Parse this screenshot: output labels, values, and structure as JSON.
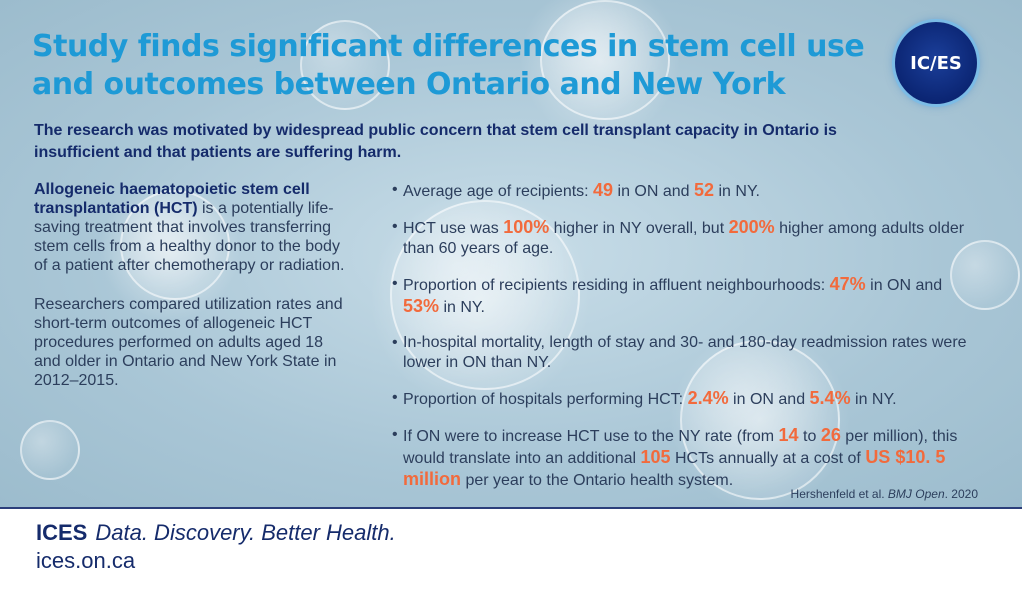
{
  "header": {
    "title": "Study finds significant differences in stem cell use and outcomes between Ontario and New York",
    "logo_text": "IC/ES",
    "subtitle": "The research was motivated by widespread public concern that stem cell transplant capacity in Ontario is insufficient and that patients are suffering harm."
  },
  "left": {
    "p1_term": "Allogeneic haematopoietic stem cell transplantation (HCT)",
    "p1_rest": " is a potentially life-saving treatment that involves transferring stem cells from a healthy donor to the body of a patient after chemotherapy or radiation.",
    "p2": "Researchers compared utilization rates and short-term outcomes of allogeneic HCT procedures performed on adults aged 18 and older in Ontario and New York State in 2012–2015."
  },
  "findings": {
    "f1": {
      "a": "Average age of recipients: ",
      "v1": "49",
      "b": " in ON and ",
      "v2": "52",
      "c": " in NY."
    },
    "f2": {
      "a": "HCT use was ",
      "v1": "100%",
      "b": " higher in  NY overall, but ",
      "v2": "200%",
      "c": " higher among adults older than 60 years of age."
    },
    "f3": {
      "a": "Proportion of recipients residing in affluent neighbourhoods: ",
      "v1": "47%",
      "b": " in ON and ",
      "v2": "53%",
      "c": " in NY."
    },
    "f4": {
      "a": "In-hospital mortality, length of stay and 30- and 180-day readmission rates were lower in ON than NY."
    },
    "f5": {
      "a": "Proportion of hospitals performing HCT: ",
      "v1": "2.4%",
      "b": " in ON and  ",
      "v2": "5.4%",
      "c": " in NY."
    },
    "f6": {
      "a": "If ON were to increase HCT use to the NY rate (from ",
      "v1": "14",
      "b": " to ",
      "v2": "26",
      "c": " per million), this would translate into an additional ",
      "v3": "105",
      "d": " HCTs annually at a cost of ",
      "v4": "US $10. 5 million",
      "e": " per year to the Ontario health system."
    }
  },
  "citation": {
    "authors": "Hershenfeld et al. ",
    "journal": "BMJ Open",
    "year": ". 2020"
  },
  "footer": {
    "brand": "ICES",
    "tagline": "Data. Discovery. Better Health.",
    "url": "ices.on.ca"
  },
  "colors": {
    "title": "#1e9ad6",
    "highlight": "#f26a3c",
    "navy": "#152b6b"
  }
}
